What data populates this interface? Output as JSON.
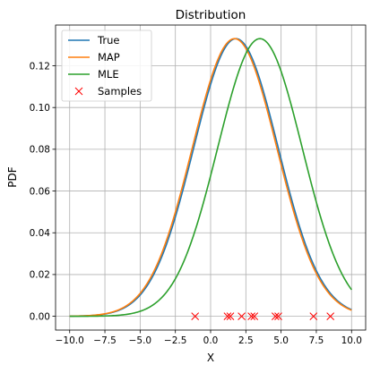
{
  "chart_data": {
    "type": "line",
    "title": "Distribution",
    "xlabel": "X",
    "ylabel": "PDF",
    "xlim": [
      -11,
      11
    ],
    "ylim": [
      -0.0066,
      0.1395
    ],
    "xticks": [
      -10.0,
      -7.5,
      -5.0,
      -2.5,
      0.0,
      2.5,
      5.0,
      7.5,
      10.0
    ],
    "xtick_labels": [
      "−10.0",
      "−7.5",
      "−5.0",
      "−2.5",
      "0.0",
      "2.5",
      "5.0",
      "7.5",
      "10.0"
    ],
    "yticks": [
      0.0,
      0.02,
      0.04,
      0.06,
      0.08,
      0.1,
      0.12
    ],
    "ytick_labels": [
      "0.00",
      "0.02",
      "0.04",
      "0.06",
      "0.08",
      "0.10",
      "0.12"
    ],
    "grid": true,
    "legend_position": "top-left",
    "series": [
      {
        "name": "True",
        "kind": "normal-pdf",
        "mean": 1.8,
        "std": 3.0,
        "color": "#1f77b4",
        "x_range": [
          -10,
          10
        ]
      },
      {
        "name": "MAP",
        "kind": "normal-pdf",
        "mean": 1.7,
        "std": 3.0,
        "color": "#ff7f0e",
        "x_range": [
          -10,
          10
        ]
      },
      {
        "name": "MLE",
        "kind": "normal-pdf",
        "mean": 3.5,
        "std": 3.0,
        "color": "#2ca02c",
        "x_range": [
          -10,
          10
        ]
      },
      {
        "name": "Samples",
        "kind": "markers",
        "marker": "x",
        "color": "#ff0000",
        "x": [
          -1.1,
          1.2,
          1.4,
          2.2,
          2.9,
          3.1,
          4.6,
          4.8,
          7.3,
          8.5
        ],
        "y": [
          0,
          0,
          0,
          0,
          0,
          0,
          0,
          0,
          0,
          0
        ]
      }
    ]
  }
}
